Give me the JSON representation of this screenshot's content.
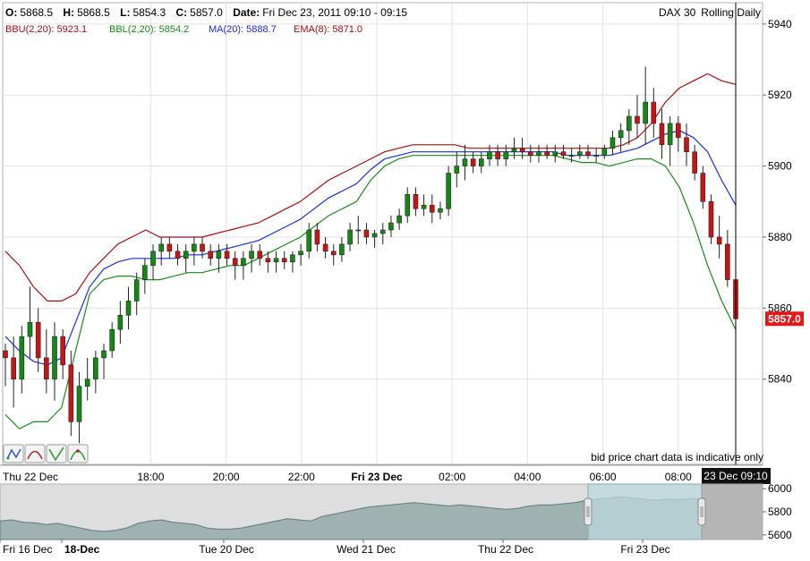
{
  "header": {
    "ohlc": [
      {
        "label": "O:",
        "value": "5868.5"
      },
      {
        "label": "H:",
        "value": "5868.5"
      },
      {
        "label": "L:",
        "value": "5854.3"
      },
      {
        "label": "C:",
        "value": "5857.0"
      },
      {
        "label": "Date:",
        "value": "Fri Dec 23, 2011 09:10 - 09:15"
      }
    ],
    "instrument": "DAX 30",
    "period": "Rolling Daily",
    "indicators": [
      {
        "text": "BBU(2,20): 5923.1",
        "color": "#a01010"
      },
      {
        "text": "BBL(2,20): 5854.2",
        "color": "#1a8a1a"
      },
      {
        "text": "MA(20): 5888.7",
        "color": "#1a2ed6"
      },
      {
        "text": "EMA(8): 5871.0",
        "color": "#a01010"
      }
    ]
  },
  "disclaimer": "bid price chart data is indicative only",
  "last_price_label": "5857.0",
  "crosshair_label": "23 Dec 09:10",
  "tool_buttons": [
    {
      "name": "line-chart-tool-icon"
    },
    {
      "name": "curve-chart-tool-icon"
    },
    {
      "name": "trend-chart-tool-icon"
    },
    {
      "name": "indicator-chart-tool-icon"
    }
  ],
  "chart_data": {
    "type": "candlestick",
    "instrument": "DAX 30",
    "ylim": [
      5816,
      5946
    ],
    "y_ticks": [
      5840,
      5860,
      5880,
      5900,
      5920,
      5940
    ],
    "x_tick_labels": [
      {
        "hour": 0,
        "label": "Thu 22 Dec",
        "bold": false
      },
      {
        "hour": 4,
        "label": "18:00",
        "bold": false
      },
      {
        "hour": 6,
        "label": "20:00",
        "bold": false
      },
      {
        "hour": 8,
        "label": "22:00",
        "bold": false
      },
      {
        "hour": 10,
        "label": "Fri 23 Dec",
        "bold": true
      },
      {
        "hour": 12,
        "label": "02:00",
        "bold": false
      },
      {
        "hour": 14,
        "label": "04:00",
        "bold": false
      },
      {
        "hour": 16,
        "label": "06:00",
        "bold": false
      },
      {
        "hour": 18,
        "label": "08:00",
        "bold": false
      }
    ],
    "x_axis_origin": "Thu 22 Dec 14:00",
    "candle_interval_minutes": 15,
    "last_close": 5857.0,
    "candles": [
      [
        5848,
        5850,
        5838,
        5846
      ],
      [
        5846,
        5852,
        5832,
        5840
      ],
      [
        5840,
        5855,
        5836,
        5852
      ],
      [
        5852,
        5866,
        5846,
        5856
      ],
      [
        5856,
        5860,
        5842,
        5846
      ],
      [
        5846,
        5854,
        5836,
        5840
      ],
      [
        5840,
        5856,
        5834,
        5852
      ],
      [
        5852,
        5854,
        5840,
        5844
      ],
      [
        5844,
        5848,
        5824,
        5828
      ],
      [
        5828,
        5842,
        5822,
        5838
      ],
      [
        5838,
        5846,
        5834,
        5840
      ],
      [
        5840,
        5848,
        5836,
        5846
      ],
      [
        5846,
        5850,
        5840,
        5848
      ],
      [
        5848,
        5856,
        5846,
        5854
      ],
      [
        5854,
        5862,
        5850,
        5858
      ],
      [
        5858,
        5866,
        5854,
        5862
      ],
      [
        5862,
        5870,
        5858,
        5868
      ],
      [
        5868,
        5874,
        5864,
        5872
      ],
      [
        5872,
        5878,
        5868,
        5876
      ],
      [
        5876,
        5880,
        5872,
        5878
      ],
      [
        5878,
        5880,
        5874,
        5876
      ],
      [
        5876,
        5878,
        5872,
        5874
      ],
      [
        5874,
        5878,
        5870,
        5876
      ],
      [
        5876,
        5880,
        5872,
        5878
      ],
      [
        5878,
        5880,
        5874,
        5876
      ],
      [
        5876,
        5878,
        5872,
        5874
      ],
      [
        5874,
        5878,
        5870,
        5876
      ],
      [
        5876,
        5878,
        5872,
        5874
      ],
      [
        5874,
        5876,
        5868,
        5872
      ],
      [
        5872,
        5876,
        5868,
        5874
      ],
      [
        5874,
        5878,
        5870,
        5876
      ],
      [
        5876,
        5878,
        5872,
        5874
      ],
      [
        5874,
        5876,
        5870,
        5873
      ],
      [
        5873,
        5876,
        5870,
        5874
      ],
      [
        5874,
        5876,
        5871,
        5873
      ],
      [
        5873,
        5876,
        5870,
        5875
      ],
      [
        5875,
        5878,
        5872,
        5876
      ],
      [
        5876,
        5884,
        5874,
        5882
      ],
      [
        5882,
        5884,
        5876,
        5878
      ],
      [
        5878,
        5880,
        5874,
        5876
      ],
      [
        5876,
        5878,
        5872,
        5875
      ],
      [
        5875,
        5880,
        5873,
        5878
      ],
      [
        5878,
        5884,
        5876,
        5882
      ],
      [
        5882,
        5886,
        5878,
        5882
      ],
      [
        5882,
        5884,
        5878,
        5880
      ],
      [
        5880,
        5882,
        5877,
        5881
      ],
      [
        5881,
        5884,
        5878,
        5882
      ],
      [
        5882,
        5886,
        5880,
        5884
      ],
      [
        5884,
        5888,
        5882,
        5886
      ],
      [
        5886,
        5894,
        5884,
        5892
      ],
      [
        5892,
        5894,
        5886,
        5888
      ],
      [
        5888,
        5892,
        5886,
        5889
      ],
      [
        5889,
        5892,
        5884,
        5887
      ],
      [
        5887,
        5890,
        5885,
        5888
      ],
      [
        5888,
        5900,
        5886,
        5898
      ],
      [
        5898,
        5904,
        5894,
        5900
      ],
      [
        5900,
        5906,
        5896,
        5902
      ],
      [
        5902,
        5904,
        5898,
        5900
      ],
      [
        5900,
        5904,
        5898,
        5902
      ],
      [
        5902,
        5906,
        5900,
        5904
      ],
      [
        5904,
        5906,
        5900,
        5902
      ],
      [
        5902,
        5906,
        5900,
        5904
      ],
      [
        5904,
        5908,
        5902,
        5905
      ],
      [
        5905,
        5908,
        5902,
        5904
      ],
      [
        5904,
        5906,
        5901,
        5903
      ],
      [
        5903,
        5906,
        5901,
        5904
      ],
      [
        5904,
        5906,
        5902,
        5903
      ],
      [
        5903,
        5906,
        5901,
        5904
      ],
      [
        5904,
        5906,
        5902,
        5903
      ],
      [
        5903,
        5905,
        5901,
        5903
      ],
      [
        5903,
        5906,
        5902,
        5904
      ],
      [
        5904,
        5906,
        5902,
        5903
      ],
      [
        5903,
        5905,
        5901,
        5903
      ],
      [
        5903,
        5906,
        5902,
        5905
      ],
      [
        5905,
        5910,
        5903,
        5908
      ],
      [
        5908,
        5912,
        5904,
        5910
      ],
      [
        5910,
        5916,
        5906,
        5914
      ],
      [
        5914,
        5920,
        5908,
        5912
      ],
      [
        5912,
        5928,
        5906,
        5918
      ],
      [
        5918,
        5922,
        5908,
        5912
      ],
      [
        5912,
        5916,
        5902,
        5906
      ],
      [
        5906,
        5914,
        5900,
        5912
      ],
      [
        5912,
        5914,
        5904,
        5908
      ],
      [
        5908,
        5912,
        5900,
        5904
      ],
      [
        5904,
        5906,
        5896,
        5898
      ],
      [
        5898,
        5900,
        5888,
        5890
      ],
      [
        5890,
        5892,
        5878,
        5880
      ],
      [
        5880,
        5886,
        5874,
        5878
      ],
      [
        5878,
        5882,
        5866,
        5868
      ],
      [
        5868,
        5868,
        5854,
        5857
      ]
    ],
    "series": [
      {
        "name": "BBU(2,20)",
        "color": "#a01010",
        "values": [
          5876,
          5872,
          5866,
          5862,
          5862,
          5864,
          5870,
          5874,
          5878,
          5880,
          5882,
          5880,
          5880,
          5880,
          5880,
          5881,
          5882,
          5883,
          5884,
          5886,
          5888,
          5890,
          5893,
          5896,
          5898,
          5900,
          5902,
          5904,
          5905,
          5906,
          5906,
          5906,
          5906,
          5905,
          5905,
          5905,
          5905,
          5905,
          5905,
          5905,
          5905,
          5905,
          5905,
          5905,
          5906,
          5908,
          5912,
          5918,
          5922,
          5924,
          5926,
          5924,
          5923
        ]
      },
      {
        "name": "BBL(2,20)",
        "color": "#1a8a1a",
        "values": [
          5830,
          5826,
          5828,
          5828,
          5832,
          5848,
          5864,
          5868,
          5869,
          5869,
          5868,
          5868,
          5869,
          5870,
          5870,
          5871,
          5872,
          5872,
          5874,
          5876,
          5878,
          5880,
          5883,
          5886,
          5888,
          5890,
          5896,
          5900,
          5902,
          5903,
          5903,
          5903,
          5903,
          5903,
          5903,
          5903,
          5903,
          5903,
          5903,
          5903,
          5902,
          5901,
          5901,
          5900,
          5901,
          5902,
          5902,
          5900,
          5894,
          5884,
          5872,
          5862,
          5854
        ]
      },
      {
        "name": "MA(20)",
        "color": "#1a2ed6",
        "values": [
          5852,
          5848,
          5845,
          5844,
          5846,
          5856,
          5866,
          5871,
          5873,
          5874,
          5874,
          5874,
          5874,
          5875,
          5875,
          5876,
          5877,
          5878,
          5879,
          5881,
          5883,
          5885,
          5888,
          5891,
          5893,
          5895,
          5899,
          5902,
          5903,
          5904,
          5904,
          5904,
          5904,
          5904,
          5904,
          5904,
          5904,
          5904,
          5904,
          5904,
          5903,
          5903,
          5903,
          5903,
          5904,
          5905,
          5907,
          5909,
          5910,
          5908,
          5904,
          5896,
          5889
        ]
      }
    ]
  },
  "navigator": {
    "y_ticks": [
      5600,
      5800,
      6000
    ],
    "ylim": [
      5560,
      6040
    ],
    "date_labels": [
      {
        "label": "Fri 16 Dec",
        "bold": false
      },
      {
        "label": "18-Dec",
        "bold": true
      },
      {
        "label": "Tue 20 Dec",
        "bold": false
      },
      {
        "label": "Wed 21 Dec",
        "bold": false
      },
      {
        "label": "Thu 22 Dec",
        "bold": false
      },
      {
        "label": "Fri 23 Dec",
        "bold": false
      }
    ],
    "values": [
      5720,
      5730,
      5710,
      5705,
      5690,
      5700,
      5680,
      5660,
      5640,
      5630,
      5640,
      5660,
      5700,
      5720,
      5730,
      5710,
      5700,
      5690,
      5660,
      5650,
      5650,
      5660,
      5680,
      5700,
      5720,
      5740,
      5730,
      5720,
      5760,
      5780,
      5800,
      5820,
      5840,
      5850,
      5860,
      5870,
      5880,
      5870,
      5860,
      5850,
      5860,
      5850,
      5840,
      5830,
      5820,
      5830,
      5850,
      5860,
      5860,
      5870,
      5880,
      5900,
      5910,
      5920,
      5930,
      5920,
      5910,
      5900,
      5910,
      5905,
      5915,
      5910
    ]
  }
}
